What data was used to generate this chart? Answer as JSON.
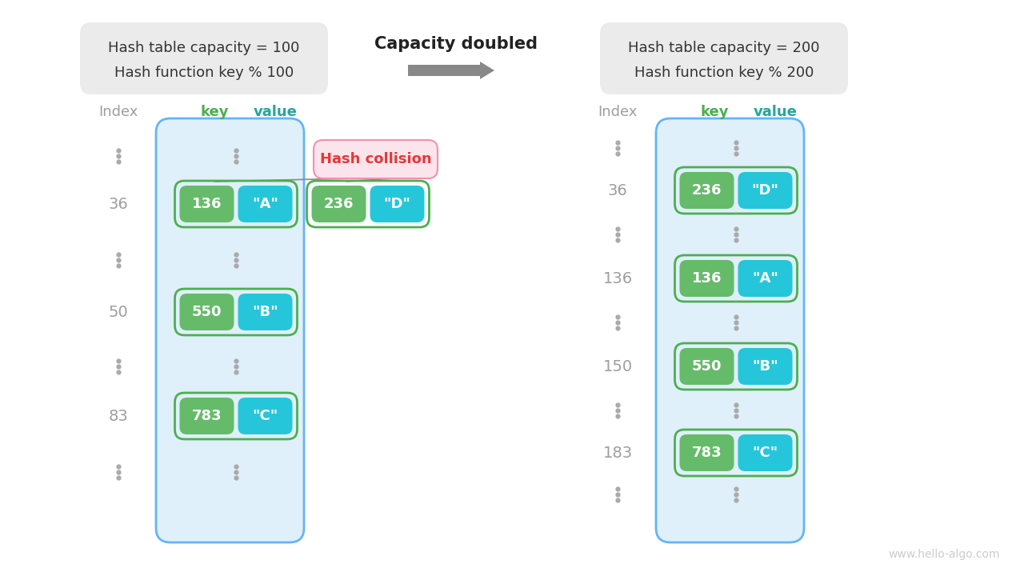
{
  "bg_color": "#ffffff",
  "title_arrow": "Capacity doubled",
  "left_box_text1": "Hash table capacity = 100",
  "left_box_text2": "Hash function key % 100",
  "right_box_text1": "Hash table capacity = 200",
  "right_box_text2": "Hash function key % 200",
  "index_label": "Index",
  "key_label": "key",
  "value_label": "value",
  "col_header_key_color": "#4caf50",
  "col_header_value_color": "#26a69a",
  "index_color": "#9e9e9e",
  "left_table_rows": [
    {
      "index": "36",
      "key": "136",
      "value": "\"A\""
    },
    {
      "index": "50",
      "key": "550",
      "value": "\"B\""
    },
    {
      "index": "83",
      "key": "783",
      "value": "\"C\""
    }
  ],
  "right_table_rows": [
    {
      "index": "36",
      "key": "236",
      "value": "\"D\""
    },
    {
      "index": "136",
      "key": "136",
      "value": "\"A\""
    },
    {
      "index": "150",
      "key": "550",
      "value": "\"B\""
    },
    {
      "index": "183",
      "key": "783",
      "value": "\"C\""
    }
  ],
  "key_box_color": "#66bb6a",
  "value_box_color": "#26c6da",
  "key_box_border": "#4caf50",
  "value_box_border": "#00bcd4",
  "text_color": "#ffffff",
  "gray_info_bg": "#ebebeb",
  "table_bg": "#dff0fa",
  "table_border": "#64b5f6",
  "collision_bg": "#fce4ec",
  "collision_border": "#f48fb1",
  "collision_text": "#e53935",
  "watermark": "www.hello-algo.com",
  "dots_color": "#aaaaaa"
}
